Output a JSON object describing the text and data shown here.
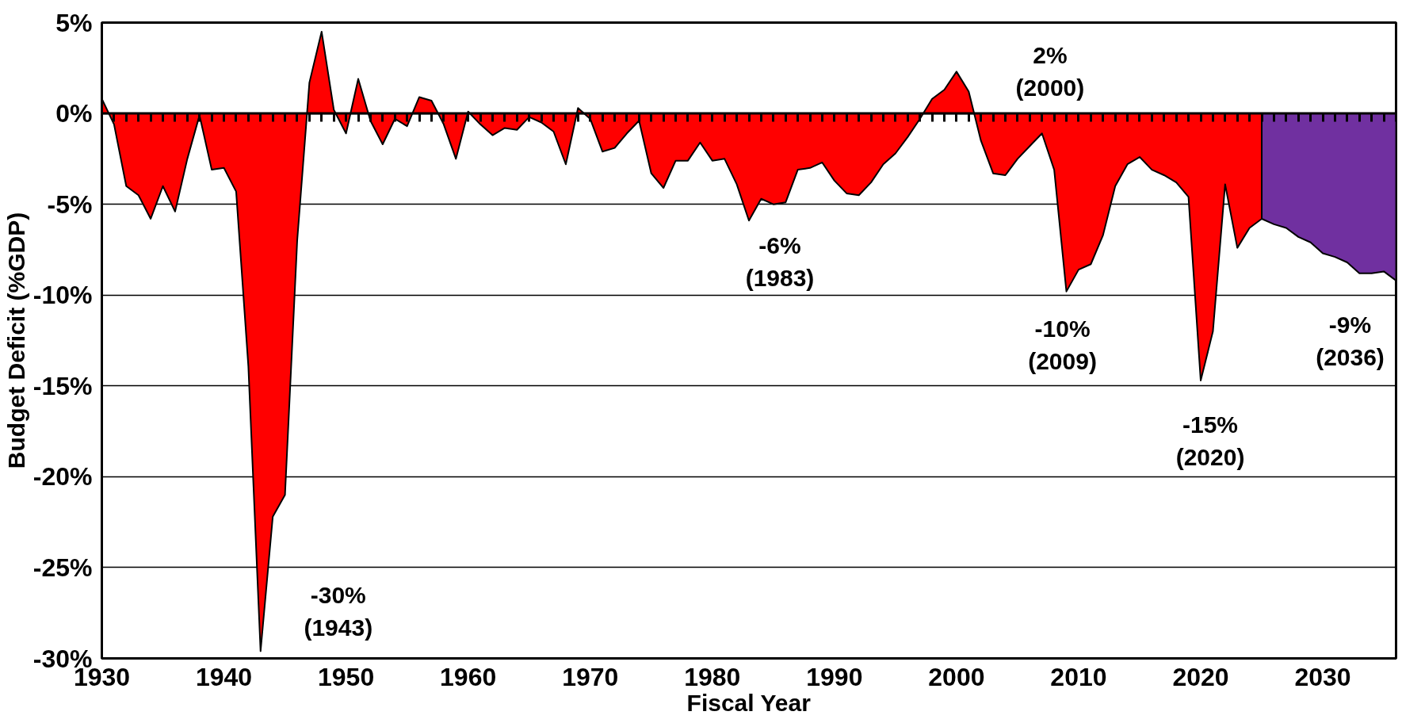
{
  "chart_data": {
    "type": "area",
    "xlabel": "Fiscal Year",
    "ylabel": "Budget Deficit (%GDP)",
    "series": [
      {
        "color": "#ff0000",
        "x": [
          1930,
          1931,
          1932,
          1933,
          1934,
          1935,
          1936,
          1937,
          1938,
          1939,
          1940,
          1941,
          1942,
          1943,
          1944,
          1945,
          1946,
          1947,
          1948,
          1949,
          1950,
          1951,
          1952,
          1953,
          1954,
          1955,
          1956,
          1957,
          1958,
          1959,
          1960,
          1961,
          1962,
          1963,
          1964,
          1965,
          1966,
          1967,
          1968,
          1969,
          1970,
          1971,
          1972,
          1973,
          1974,
          1975,
          1976,
          1977,
          1978,
          1979,
          1980,
          1981,
          1982,
          1983,
          1984,
          1985,
          1986,
          1987,
          1988,
          1989,
          1990,
          1991,
          1992,
          1993,
          1994,
          1995,
          1996,
          1997,
          1998,
          1999,
          2000,
          2001,
          2002,
          2003,
          2004,
          2005,
          2006,
          2007,
          2008,
          2009,
          2010,
          2011,
          2012,
          2013,
          2014,
          2015,
          2016,
          2017,
          2018,
          2019,
          2020,
          2021,
          2022,
          2023,
          2024,
          2025
        ],
        "values": [
          0.8,
          -0.6,
          -4.0,
          -4.5,
          -5.8,
          -4.0,
          -5.4,
          -2.5,
          -0.1,
          -3.1,
          -3.0,
          -4.3,
          -13.9,
          -29.6,
          -22.2,
          -21.0,
          -7.0,
          1.7,
          4.5,
          0.2,
          -1.1,
          1.9,
          -0.4,
          -1.7,
          -0.3,
          -0.7,
          0.9,
          0.7,
          -0.6,
          -2.5,
          0.1,
          -0.6,
          -1.2,
          -0.8,
          -0.9,
          -0.2,
          -0.5,
          -1.0,
          -2.8,
          0.3,
          -0.3,
          -2.1,
          -1.9,
          -1.1,
          -0.4,
          -3.3,
          -4.1,
          -2.6,
          -2.6,
          -1.6,
          -2.6,
          -2.5,
          -3.9,
          -5.9,
          -4.7,
          -5.0,
          -4.9,
          -3.1,
          -3.0,
          -2.7,
          -3.7,
          -4.4,
          -4.5,
          -3.8,
          -2.8,
          -2.2,
          -1.3,
          -0.3,
          0.8,
          1.3,
          2.3,
          1.2,
          -1.5,
          -3.3,
          -3.4,
          -2.5,
          -1.8,
          -1.1,
          -3.1,
          -9.8,
          -8.6,
          -8.3,
          -6.7,
          -4.0,
          -2.8,
          -2.4,
          -3.1,
          -3.4,
          -3.8,
          -4.6,
          -14.7,
          -12.0,
          -3.9,
          -7.4,
          -6.3,
          -5.8
        ]
      },
      {
        "color": "#7030a0",
        "x": [
          2025,
          2026,
          2027,
          2028,
          2029,
          2030,
          2031,
          2032,
          2033,
          2034,
          2035,
          2036
        ],
        "values": [
          -5.8,
          -6.1,
          -6.3,
          -6.8,
          -7.1,
          -7.7,
          -7.9,
          -8.2,
          -8.8,
          -8.8,
          -8.7,
          -9.2
        ]
      }
    ],
    "xlim": [
      1930,
      2036
    ],
    "xticks": [
      1930,
      1940,
      1950,
      1960,
      1970,
      1980,
      1990,
      2000,
      2010,
      2020,
      2030
    ],
    "ylim": [
      -30,
      5
    ],
    "yticks": [
      {
        "value": -30,
        "label": "-30%"
      },
      {
        "value": -25,
        "label": "-25%"
      },
      {
        "value": -20,
        "label": "-20%"
      },
      {
        "value": -15,
        "label": "-15%"
      },
      {
        "value": -10,
        "label": "-10%"
      },
      {
        "value": -5,
        "label": "-5%"
      },
      {
        "value": 0,
        "label": "0%"
      },
      {
        "value": 5,
        "label": "5%"
      }
    ],
    "grid": "y",
    "ref_lines": [
      {
        "axis": "y",
        "value": 0,
        "color": "#000000"
      }
    ],
    "annotations": [
      {
        "text": "-30%\n(1943)",
        "x": 1943,
        "y": -29.6
      },
      {
        "text": "-6%\n(1983)",
        "x": 1983,
        "y": -5.9
      },
      {
        "text": "2%\n(2000)",
        "x": 2000,
        "y": 2.3
      },
      {
        "text": "-10%\n(2009)",
        "x": 2009,
        "y": -9.8
      },
      {
        "text": "-15%\n(2020)",
        "x": 2020,
        "y": -14.7
      },
      {
        "text": "-9%\n(2036)",
        "x": 2036,
        "y": -9.2
      }
    ]
  }
}
